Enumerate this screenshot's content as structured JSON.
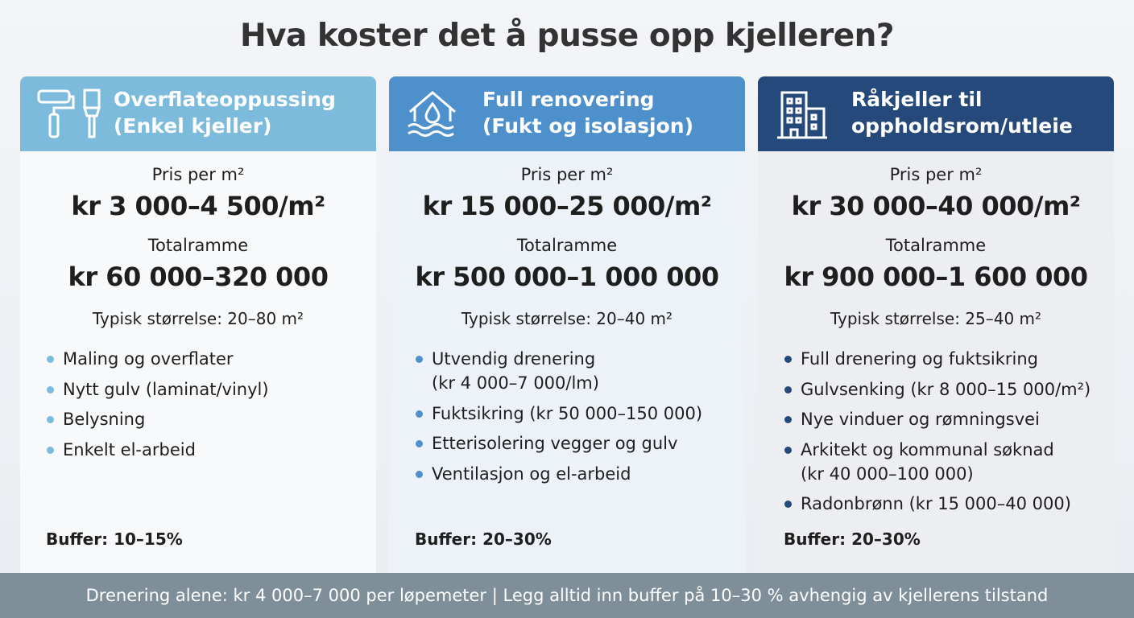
{
  "title": "Hva koster det å pusse opp kjelleren?",
  "cards": [
    {
      "title": [
        "Overflateoppussing",
        "(Enkel kjeller)"
      ],
      "price_label": "Pris per m²",
      "price": "kr 3 000–4 500/m²",
      "total_label": "Totalramme",
      "total": "kr 60 000–320 000",
      "size": "Typisk størrelse: 20–80 m²",
      "bullets": [
        [
          "Maling og overflater"
        ],
        [
          "Nytt gulv (laminat/vinyl)"
        ],
        [
          "Belysning"
        ],
        [
          "Enkelt el-arbeid"
        ]
      ],
      "buffer": "Buffer: 10–15%"
    },
    {
      "title": [
        "Full renovering",
        "(Fukt og isolasjon)"
      ],
      "price_label": "Pris per m²",
      "price": "kr 15 000–25 000/m²",
      "total_label": "Totalramme",
      "total": "kr 500 000–1 000 000",
      "size": "Typisk størrelse: 20–40 m²",
      "bullets": [
        [
          "Utvendig drenering",
          "(kr 4 000–7 000/lm)"
        ],
        [
          "Fuktsikring (kr 50 000–150 000)"
        ],
        [
          "Etterisolering vegger og gulv"
        ],
        [
          "Ventilasjon og el-arbeid"
        ]
      ],
      "buffer": "Buffer: 20–30%"
    },
    {
      "title": [
        "Råkjeller til",
        "oppholdsrom/utleie"
      ],
      "price_label": "Pris per m²",
      "price": "kr 30 000–40 000/m²",
      "total_label": "Totalramme",
      "total": "kr 900 000–1 600 000",
      "size": "Typisk størrelse: 25–40 m²",
      "bullets": [
        [
          "Full drenering og fuktsikring"
        ],
        [
          "Gulvsenking (kr 8 000–15 000/m²)"
        ],
        [
          "Nye vinduer og rømningsvei"
        ],
        [
          "Arkitekt og kommunal søknad",
          "(kr 40 000–100 000)"
        ],
        [
          "Radonbrønn (kr 15 000–40 000)"
        ]
      ],
      "buffer": "Buffer: 20–30%"
    }
  ],
  "footer": "Drenering alene: kr 4 000–7 000 per løpemeter | Legg alltid inn buffer på 10–30 % avhengig av kjellerens tilstand"
}
